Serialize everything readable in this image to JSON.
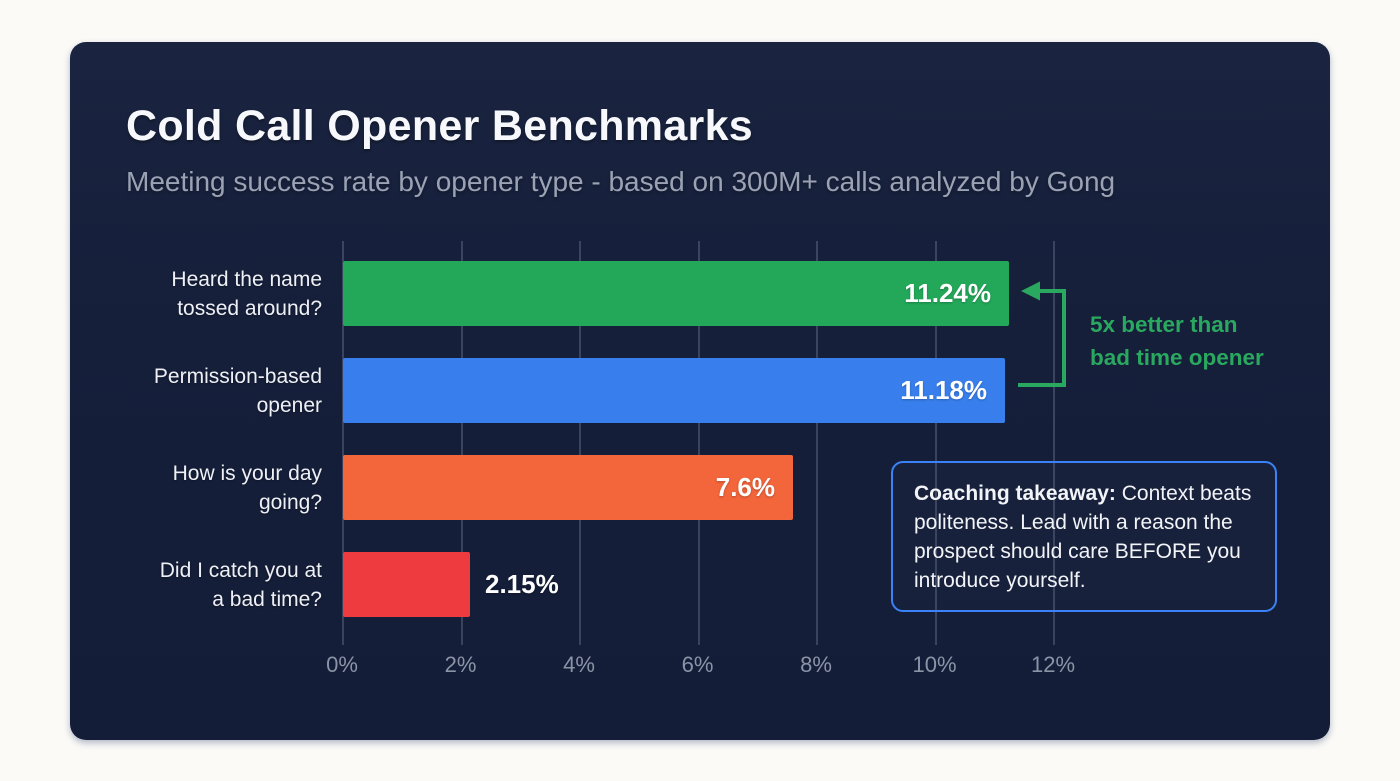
{
  "chart_data": {
    "type": "bar",
    "orientation": "horizontal",
    "title": "Cold Call Opener Benchmarks",
    "subtitle": "Meeting success rate by opener type - based on 300M+ calls analyzed by Gong",
    "categories": [
      "Heard the name tossed around?",
      "Permission-based opener",
      "How is your day going?",
      "Did I catch you at a bad time?"
    ],
    "category_lines": [
      [
        "Heard the name",
        "tossed around?"
      ],
      [
        "Permission-based",
        "opener"
      ],
      [
        "How is your day",
        "going?"
      ],
      [
        "Did I catch you at",
        "a bad time?"
      ]
    ],
    "values": [
      11.24,
      11.18,
      7.6,
      2.15
    ],
    "value_labels": [
      "11.24%",
      "11.18%",
      "7.6%",
      "2.15%"
    ],
    "value_label_placement": [
      "inside",
      "inside",
      "inside",
      "outside"
    ],
    "bar_colors": [
      "#23a85a",
      "#387fed",
      "#f3653b",
      "#ee3b40"
    ],
    "x_ticks": [
      "0%",
      "2%",
      "4%",
      "6%",
      "8%",
      "10%",
      "12%"
    ],
    "x_tick_values": [
      0,
      2,
      4,
      6,
      8,
      10,
      12
    ],
    "xlim": [
      0,
      12
    ],
    "grid": true,
    "legend": "none",
    "background": "#151f3a"
  },
  "annotation": {
    "line1": "5x better than",
    "line2": "bad time opener",
    "color": "#2aa85f"
  },
  "callout": {
    "bold_label": "Coaching takeaway:",
    "text": " Context beats politeness. Lead with a reason the prospect should care BEFORE you introduce yourself.",
    "border_color": "#3b82f6"
  },
  "page": {
    "background": "#fbfaf7"
  }
}
